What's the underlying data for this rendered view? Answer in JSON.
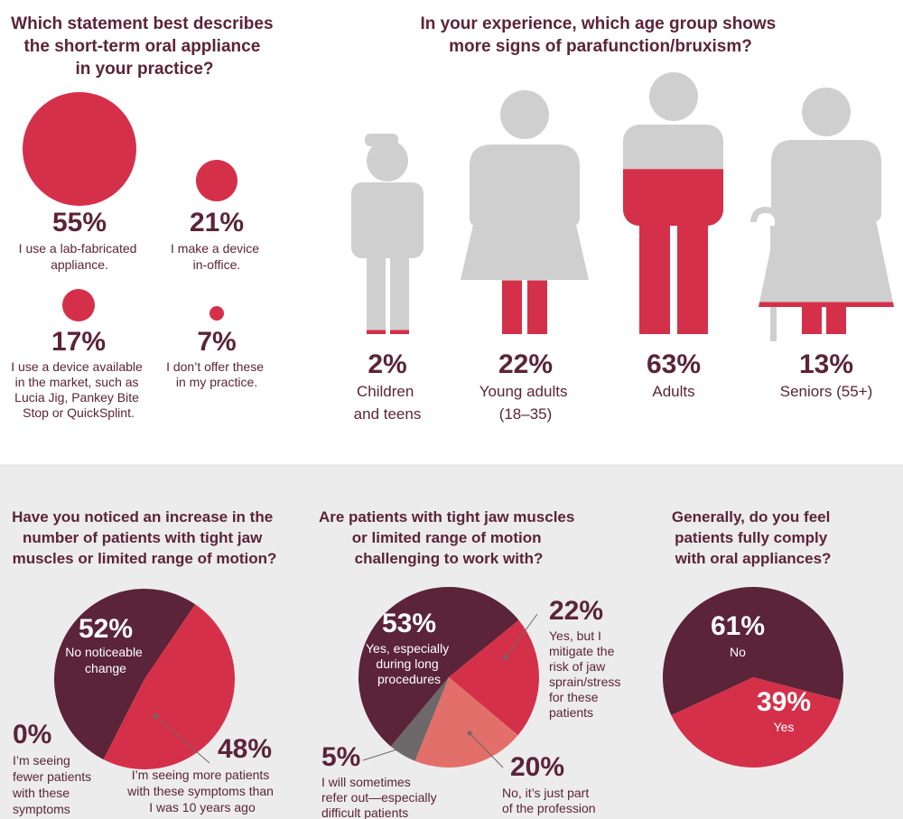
{
  "colors": {
    "maroon": "#5b2438",
    "red": "#d5304a",
    "salmon": "#e36f6a",
    "darkgray": "#6d6869",
    "lightgray": "#cfcfcf",
    "panel": "#ececec"
  },
  "chart_data": [
    {
      "type": "bubble",
      "title": [
        "Which statement best describes",
        "the short-term oral appliance",
        "in your practice?"
      ],
      "items": [
        {
          "value": 55,
          "label": "55%",
          "desc": [
            "I use a lab-fabricated",
            "appliance."
          ]
        },
        {
          "value": 21,
          "label": "21%",
          "desc": [
            "I make a device",
            "in-office."
          ]
        },
        {
          "value": 17,
          "label": "17%",
          "desc": [
            "I use a device available",
            "in the market, such as",
            "Lucia Jig, Pankey Bite",
            "Stop or QuickSplint."
          ]
        },
        {
          "value": 7,
          "label": "7%",
          "desc": [
            "I don’t offer these",
            "in my practice."
          ]
        }
      ]
    },
    {
      "type": "pictogram",
      "title": [
        "In your experience, which age group shows",
        "more signs of parafunction/bruxism?"
      ],
      "items": [
        {
          "value": 2,
          "label": "2%",
          "name": [
            "Children",
            "and teens"
          ]
        },
        {
          "value": 22,
          "label": "22%",
          "name": [
            "Young adults",
            "(18–35)"
          ]
        },
        {
          "value": 63,
          "label": "63%",
          "name": [
            "Adults"
          ]
        },
        {
          "value": 13,
          "label": "13%",
          "name": [
            "Seniors (55+)"
          ]
        }
      ]
    },
    {
      "type": "pie",
      "title": [
        "Have you noticed an increase in the",
        "number of patients with tight jaw",
        "muscles or limited range of motion?"
      ],
      "slices": [
        {
          "value": 52,
          "label": "52%",
          "desc": [
            "No noticeable",
            "change"
          ],
          "color": "#5b2438"
        },
        {
          "value": 48,
          "label": "48%",
          "desc": [
            "I’m seeing more patients",
            "with these symptoms than",
            "I was 10 years ago"
          ],
          "color": "#d5304a"
        },
        {
          "value": 0,
          "label": "0%",
          "desc": [
            "I’m seeing",
            "fewer patients",
            "with these",
            "symptoms"
          ],
          "color": "#6d6869"
        }
      ]
    },
    {
      "type": "pie",
      "title": [
        "Are patients with tight jaw muscles",
        "or limited range of motion",
        "challenging to work with?"
      ],
      "slices": [
        {
          "value": 53,
          "label": "53%",
          "desc": [
            "Yes, especially",
            "during long",
            "procedures"
          ],
          "color": "#5b2438"
        },
        {
          "value": 22,
          "label": "22%",
          "desc": [
            "Yes, but I",
            "mitigate the",
            "risk of jaw",
            "sprain/stress",
            "for these",
            "patients"
          ],
          "color": "#d5304a"
        },
        {
          "value": 20,
          "label": "20%",
          "desc": [
            "No, it’s just part",
            "of the profession"
          ],
          "color": "#e36f6a"
        },
        {
          "value": 5,
          "label": "5%",
          "desc": [
            "I will sometimes",
            "refer out—especially",
            "difficult patients"
          ],
          "color": "#6d6869"
        }
      ]
    },
    {
      "type": "pie",
      "title": [
        "Generally, do you feel",
        "patients fully comply",
        "with oral appliances?"
      ],
      "slices": [
        {
          "value": 61,
          "label": "61%",
          "desc": [
            "No"
          ],
          "color": "#5b2438"
        },
        {
          "value": 39,
          "label": "39%",
          "desc": [
            "Yes"
          ],
          "color": "#d5304a"
        }
      ]
    }
  ]
}
